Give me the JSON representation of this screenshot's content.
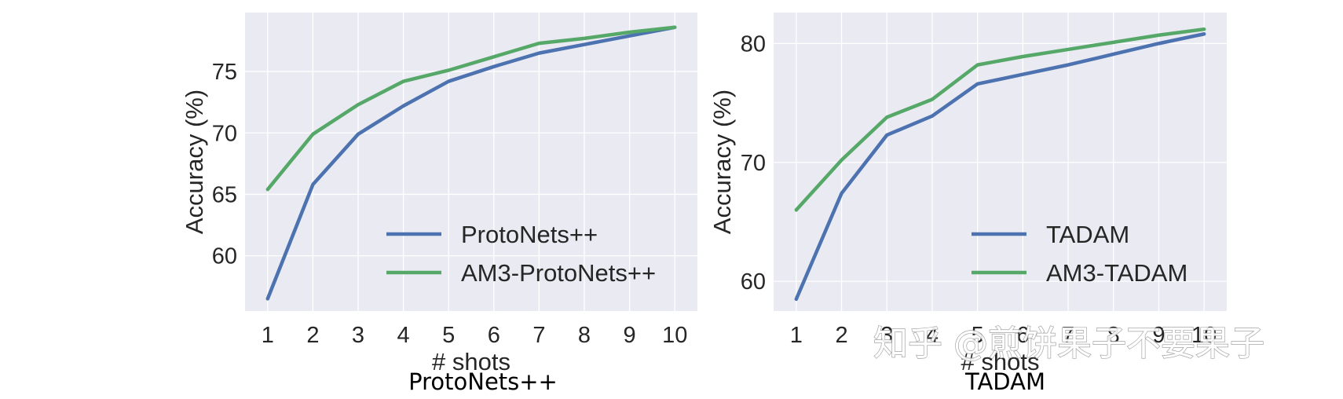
{
  "colors": {
    "plot_bg": "#eaeaf2",
    "grid": "#ffffff",
    "blue": "#4c72b0",
    "green": "#55a868",
    "text": "#262626"
  },
  "watermark": "知乎 @煎饼果子不要果子",
  "chart_data": [
    {
      "type": "line",
      "caption": "ProtoNets++",
      "xlabel": "# shots",
      "ylabel": "Accuracy (%)",
      "x": [
        1,
        2,
        3,
        4,
        5,
        6,
        7,
        8,
        9,
        10
      ],
      "xlim": [
        0.5,
        10.5
      ],
      "ylim": [
        55.5,
        79.8
      ],
      "yticks": [
        60,
        65,
        70,
        75
      ],
      "grid": true,
      "legend_loc": "lower-right",
      "series": [
        {
          "name": "ProtoNets++",
          "color": "#4c72b0",
          "values": [
            56.5,
            65.8,
            69.9,
            72.2,
            74.2,
            75.4,
            76.5,
            77.2,
            77.9,
            78.6
          ]
        },
        {
          "name": "AM3-ProtoNets++",
          "color": "#55a868",
          "values": [
            65.4,
            69.9,
            72.3,
            74.2,
            75.1,
            76.2,
            77.3,
            77.7,
            78.2,
            78.6
          ]
        }
      ]
    },
    {
      "type": "line",
      "caption": "TADAM",
      "xlabel": "# shots",
      "ylabel": "Accuracy (%)",
      "x": [
        1,
        2,
        3,
        4,
        5,
        6,
        7,
        8,
        9,
        10
      ],
      "xlim": [
        0.5,
        10.5
      ],
      "ylim": [
        57.5,
        82.6
      ],
      "yticks": [
        60,
        70,
        80
      ],
      "grid": true,
      "legend_loc": "lower-right",
      "series": [
        {
          "name": "TADAM",
          "color": "#4c72b0",
          "values": [
            58.5,
            67.4,
            72.3,
            73.9,
            76.6,
            77.4,
            78.2,
            79.1,
            80.0,
            80.8
          ]
        },
        {
          "name": "AM3-TADAM",
          "color": "#55a868",
          "values": [
            66.0,
            70.2,
            73.8,
            75.3,
            78.2,
            78.9,
            79.5,
            80.1,
            80.7,
            81.2
          ]
        }
      ]
    }
  ]
}
